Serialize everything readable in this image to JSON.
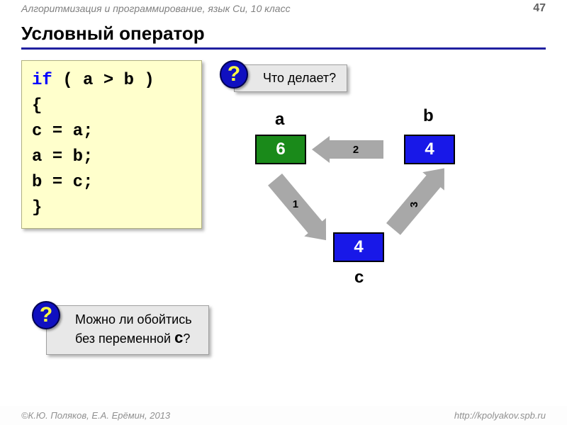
{
  "header": {
    "left": "Алгоритмизация и программирование, язык Си, 10 класс",
    "page_number": "47"
  },
  "title": "Условный оператор",
  "code": {
    "keyword": "if",
    "cond": " ( a > b )",
    "lines": [
      "  {",
      "  c = a;",
      "  a = b;",
      "  b = c;",
      "  }"
    ]
  },
  "question1": {
    "mark": "?",
    "text": "Что делает?"
  },
  "question2": {
    "mark": "?",
    "line1": "Можно ли обойтись",
    "line2_pre": "без переменной ",
    "line2_var": "c",
    "line2_post": "?"
  },
  "diagram": {
    "labels": {
      "a": "a",
      "b": "b",
      "c": "c"
    },
    "values": {
      "a": "6",
      "b": "4",
      "c": "4"
    },
    "arrows": {
      "a1": "1",
      "a2": "2",
      "a3": "3"
    },
    "colors": {
      "box_a_bg": "#1a8a1a",
      "box_b_bg": "#1818e8",
      "box_c_bg": "#1818e8",
      "arrow_fill": "#a8a8a8"
    }
  },
  "footer": {
    "left": "К.Ю. Поляков, Е.А. Ерёмин, 2013",
    "right": "http://kpolyakov.spb.ru"
  }
}
